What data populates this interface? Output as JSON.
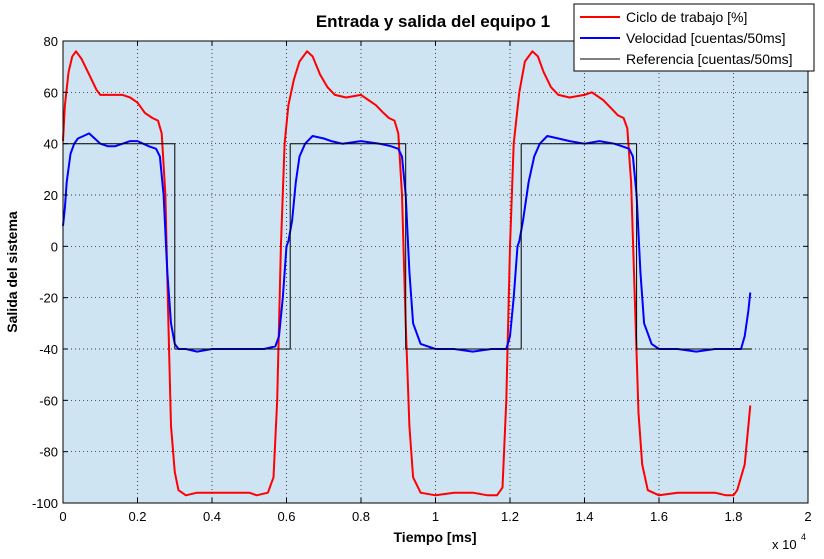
{
  "chart_data": {
    "type": "line",
    "title": "Entrada y salida del equipo 1",
    "xlabel": "Tiempo [ms]",
    "ylabel": "Salida del sistema",
    "x_multiplier": "x 10",
    "x_multiplier_exp": "4",
    "xlim": [
      0,
      2
    ],
    "ylim": [
      -100,
      80
    ],
    "xticks": [
      0,
      0.2,
      0.4,
      0.6,
      0.8,
      1,
      1.2,
      1.4,
      1.6,
      1.8,
      2
    ],
    "xtick_labels": [
      "0",
      "0.2",
      "0.4",
      "0.6",
      "0.8",
      "1",
      "1.2",
      "1.4",
      "1.6",
      "1.8",
      "2"
    ],
    "yticks": [
      -100,
      -80,
      -60,
      -40,
      -20,
      0,
      20,
      40,
      60,
      80
    ],
    "ytick_labels": [
      "-100",
      "-80",
      "-60",
      "-40",
      "-20",
      "0",
      "20",
      "40",
      "60",
      "80"
    ],
    "grid": true,
    "legend_position": "top-right",
    "background_color": "#cfe4f2",
    "series": [
      {
        "name": "Ciclo de trabajo [%]",
        "color": "#ff0000",
        "x": [
          0,
          0.005,
          0.015,
          0.025,
          0.035,
          0.05,
          0.07,
          0.09,
          0.1,
          0.12,
          0.16,
          0.18,
          0.2,
          0.22,
          0.24,
          0.255,
          0.265,
          0.275,
          0.283,
          0.29,
          0.3,
          0.31,
          0.33,
          0.36,
          0.4,
          0.45,
          0.5,
          0.52,
          0.55,
          0.565,
          0.575,
          0.585,
          0.595,
          0.605,
          0.62,
          0.635,
          0.655,
          0.67,
          0.69,
          0.71,
          0.73,
          0.76,
          0.8,
          0.82,
          0.84,
          0.86,
          0.875,
          0.89,
          0.9,
          0.91,
          0.92,
          0.93,
          0.94,
          0.96,
          1,
          1.05,
          1.1,
          1.14,
          1.165,
          1.18,
          1.19,
          1.2,
          1.21,
          1.225,
          1.24,
          1.26,
          1.275,
          1.29,
          1.31,
          1.33,
          1.36,
          1.4,
          1.42,
          1.45,
          1.47,
          1.49,
          1.505,
          1.515,
          1.525,
          1.535,
          1.545,
          1.555,
          1.57,
          1.6,
          1.65,
          1.7,
          1.75,
          1.78,
          1.8,
          1.81,
          1.83,
          1.845
        ],
        "values": [
          41,
          55,
          68,
          74,
          76,
          73,
          67,
          61,
          59,
          59,
          59,
          58,
          56,
          52,
          50,
          49,
          44,
          20,
          -30,
          -70,
          -88,
          -95,
          -97,
          -96,
          -96,
          -96,
          -96,
          -97,
          -96,
          -90,
          -60,
          0,
          40,
          55,
          65,
          72,
          76,
          74,
          67,
          62,
          59,
          58,
          59,
          57,
          55,
          52,
          50,
          49,
          44,
          20,
          -30,
          -70,
          -90,
          -96,
          -97,
          -96,
          -96,
          -97,
          -97,
          -94,
          -60,
          0,
          40,
          60,
          72,
          76,
          74,
          68,
          62,
          59,
          58,
          59,
          60,
          57,
          54,
          51,
          50,
          46,
          25,
          -20,
          -65,
          -85,
          -95,
          -97,
          -96,
          -96,
          -96,
          -97,
          -97,
          -95,
          -85,
          -62
        ]
      },
      {
        "name": "Velocidad [cuentas/50ms]",
        "color": "#0000ff",
        "x": [
          0,
          0.005,
          0.01,
          0.02,
          0.03,
          0.04,
          0.055,
          0.07,
          0.085,
          0.1,
          0.12,
          0.14,
          0.16,
          0.18,
          0.2,
          0.23,
          0.25,
          0.26,
          0.27,
          0.28,
          0.29,
          0.3,
          0.31,
          0.33,
          0.36,
          0.4,
          0.45,
          0.5,
          0.54,
          0.57,
          0.58,
          0.59,
          0.6,
          0.605,
          0.615,
          0.625,
          0.635,
          0.65,
          0.67,
          0.7,
          0.72,
          0.75,
          0.8,
          0.85,
          0.88,
          0.9,
          0.91,
          0.92,
          0.93,
          0.94,
          0.96,
          1,
          1.05,
          1.1,
          1.15,
          1.19,
          1.2,
          1.21,
          1.22,
          1.225,
          1.235,
          1.25,
          1.265,
          1.28,
          1.3,
          1.33,
          1.36,
          1.4,
          1.44,
          1.48,
          1.5,
          1.52,
          1.53,
          1.54,
          1.55,
          1.56,
          1.58,
          1.6,
          1.65,
          1.7,
          1.75,
          1.8,
          1.82,
          1.83,
          1.84,
          1.845
        ],
        "values": [
          8,
          15,
          25,
          36,
          40,
          42,
          43,
          44,
          42,
          40,
          39,
          39,
          40,
          41,
          41,
          39,
          38,
          35,
          20,
          -10,
          -30,
          -38,
          -40,
          -40,
          -41,
          -40,
          -40,
          -40,
          -40,
          -39,
          -35,
          -20,
          0,
          2,
          10,
          25,
          35,
          40,
          43,
          42,
          41,
          40,
          41,
          40,
          39,
          38,
          35,
          20,
          -10,
          -30,
          -38,
          -40,
          -40,
          -41,
          -40,
          -40,
          -35,
          -20,
          0,
          2,
          10,
          25,
          35,
          40,
          43,
          42,
          41,
          40,
          41,
          40,
          39,
          38,
          35,
          20,
          -10,
          -30,
          -38,
          -40,
          -40,
          -41,
          -40,
          -40,
          -40,
          -35,
          -25,
          -18
        ]
      },
      {
        "name": "Referencia [cuentas/50ms]",
        "color": "#000000",
        "x": [
          0,
          0.3,
          0.3,
          0.61,
          0.61,
          0.92,
          0.92,
          1.23,
          1.23,
          1.54,
          1.54,
          1.85
        ],
        "values": [
          40,
          40,
          -40,
          -40,
          40,
          40,
          -40,
          -40,
          40,
          40,
          -40,
          -40
        ]
      }
    ]
  }
}
